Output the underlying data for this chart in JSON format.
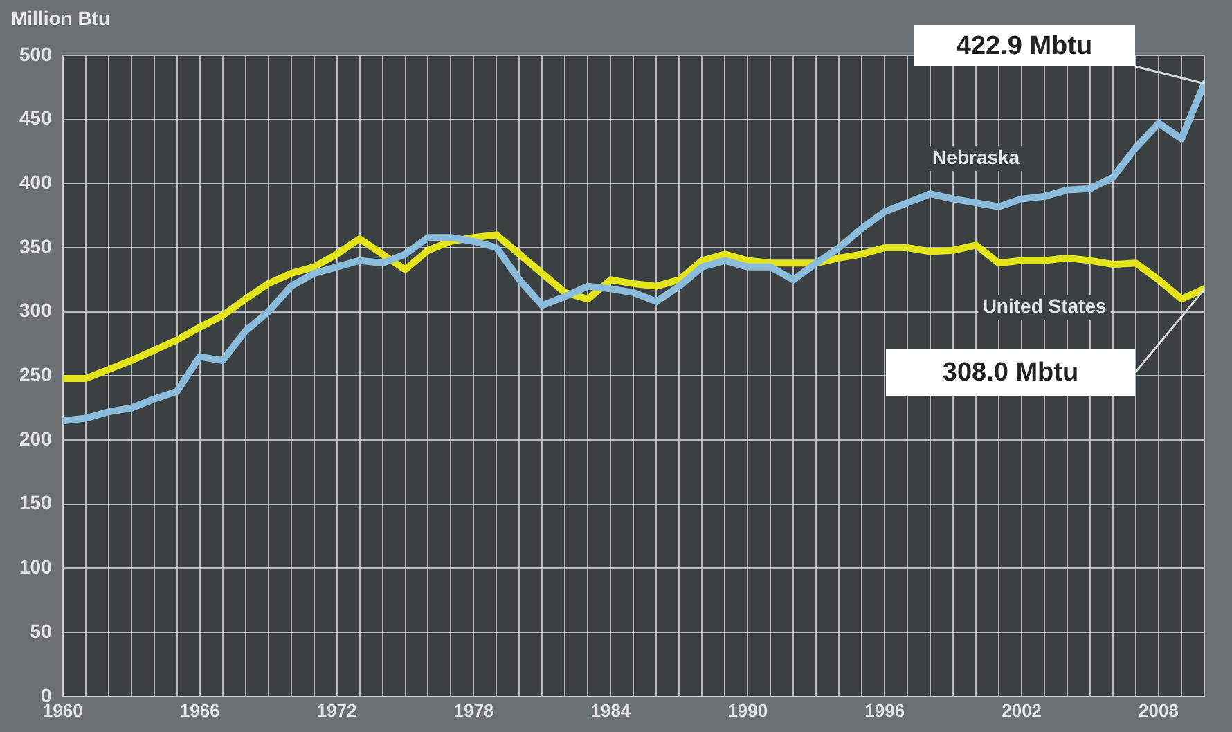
{
  "chart_data": {
    "type": "line",
    "ylabel": "Million Btu",
    "x": [
      1960,
      1961,
      1962,
      1963,
      1964,
      1965,
      1966,
      1967,
      1968,
      1969,
      1970,
      1971,
      1972,
      1973,
      1974,
      1975,
      1976,
      1977,
      1978,
      1979,
      1980,
      1981,
      1982,
      1983,
      1984,
      1985,
      1986,
      1987,
      1988,
      1989,
      1990,
      1991,
      1992,
      1993,
      1994,
      1995,
      1996,
      1997,
      1998,
      1999,
      2000,
      2001,
      2002,
      2003,
      2004,
      2005,
      2006,
      2007,
      2008,
      2009,
      2010
    ],
    "series": [
      {
        "name": "Nebraska",
        "color": "#8cbcdc",
        "values": [
          215,
          217,
          222,
          225,
          232,
          238,
          265,
          262,
          285,
          300,
          320,
          330,
          335,
          340,
          338,
          345,
          358,
          358,
          355,
          350,
          325,
          305,
          312,
          320,
          318,
          315,
          308,
          320,
          335,
          340,
          335,
          335,
          325,
          338,
          350,
          365,
          378,
          385,
          392,
          388,
          385,
          382,
          388,
          390,
          395,
          396,
          405,
          428,
          447,
          435,
          478
        ]
      },
      {
        "name": "United States",
        "color": "#e4e41c",
        "values": [
          248,
          248,
          255,
          262,
          270,
          278,
          288,
          297,
          310,
          322,
          330,
          335,
          345,
          357,
          345,
          333,
          348,
          355,
          358,
          360,
          345,
          330,
          315,
          310,
          325,
          322,
          320,
          325,
          340,
          345,
          340,
          338,
          338,
          338,
          342,
          345,
          350,
          350,
          347,
          348,
          352,
          338,
          340,
          340,
          342,
          340,
          337,
          338,
          325,
          310,
          318
        ]
      }
    ],
    "xlim": [
      1960,
      2010
    ],
    "xticks": [
      1960,
      {
        "value": 1961,
        "label": null
      },
      {
        "value": 1962,
        "label": null
      },
      {
        "value": 1963,
        "label": null
      },
      {
        "value": 1964,
        "label": null
      },
      {
        "value": 1965,
        "label": null
      },
      1966,
      {
        "value": 1967,
        "label": null
      },
      {
        "value": 1968,
        "label": null
      },
      {
        "value": 1969,
        "label": null
      },
      {
        "value": 1970,
        "label": null
      },
      {
        "value": 1971,
        "label": null
      },
      1972,
      {
        "value": 1973,
        "label": null
      },
      {
        "value": 1974,
        "label": null
      },
      {
        "value": 1975,
        "label": null
      },
      {
        "value": 1976,
        "label": null
      },
      {
        "value": 1977,
        "label": null
      },
      1978,
      {
        "value": 1979,
        "label": null
      },
      {
        "value": 1980,
        "label": null
      },
      {
        "value": 1981,
        "label": null
      },
      {
        "value": 1982,
        "label": null
      },
      {
        "value": 1983,
        "label": null
      },
      1984,
      {
        "value": 1985,
        "label": null
      },
      {
        "value": 1986,
        "label": null
      },
      {
        "value": 1987,
        "label": null
      },
      {
        "value": 1988,
        "label": null
      },
      {
        "value": 1989,
        "label": null
      },
      1990,
      {
        "value": 1991,
        "label": null
      },
      {
        "value": 1992,
        "label": null
      },
      {
        "value": 1993,
        "label": null
      },
      {
        "value": 1994,
        "label": null
      },
      {
        "value": 1995,
        "label": null
      },
      1996,
      {
        "value": 1997,
        "label": null
      },
      {
        "value": 1998,
        "label": null
      },
      {
        "value": 1999,
        "label": null
      },
      {
        "value": 2000,
        "label": null
      },
      {
        "value": 2001,
        "label": null
      },
      2002,
      {
        "value": 2003,
        "label": null
      },
      {
        "value": 2004,
        "label": null
      },
      {
        "value": 2005,
        "label": null
      },
      {
        "value": 2006,
        "label": null
      },
      {
        "value": 2007,
        "label": null
      },
      2008,
      {
        "value": 2009,
        "label": null
      },
      {
        "value": 2010,
        "label": null
      }
    ],
    "ylim": [
      0,
      500
    ],
    "yticks": [
      0,
      50,
      100,
      150,
      200,
      250,
      300,
      350,
      400,
      450,
      500
    ],
    "grid": true,
    "legend": false,
    "marker": "none",
    "line_style": "solid",
    "annotations": [
      "422.9 Mbtu",
      "308.0 Mbtu"
    ]
  }
}
